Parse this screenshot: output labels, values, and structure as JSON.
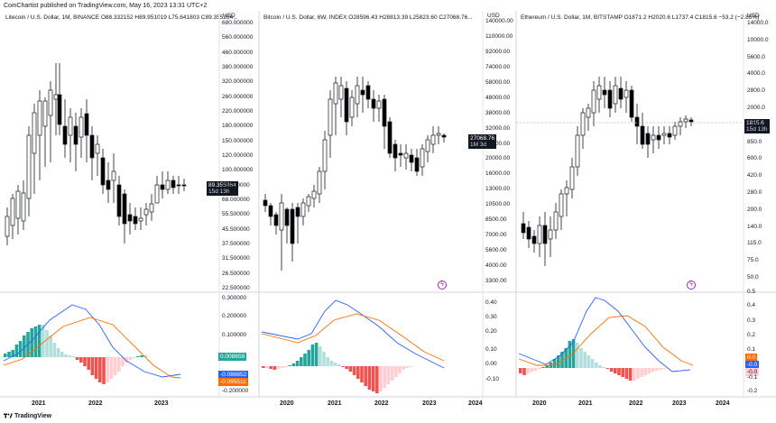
{
  "header": {
    "text": "CoinChartist published on TradingView.com, May 16, 2023 13:31 UTC+2"
  },
  "footer": {
    "brand": "TradingView"
  },
  "currency_label": "USD",
  "panels": [
    {
      "title": "Litecoin / U.S. Dollar, 1M, BINANCE  O88.332152  H89.951019  L75.641803  C89.355264...",
      "price_ticks": [
        "680.000000",
        "560.000000",
        "460.000000",
        "380.000000",
        "320.000000",
        "260.000000",
        "220.000000",
        "180.000000",
        "150.000000",
        "120.000000",
        "100.000000",
        "82.000000",
        "68.000000",
        "55.500000",
        "45.500000",
        "37.500000",
        "31.500000",
        "26.500000",
        "22.500000"
      ],
      "price_badge": "89.355264",
      "price_badge_sub": "15d 13h",
      "macd_ticks": [
        "0.300000",
        "0.200000",
        "0.100000",
        "-0.200000"
      ],
      "macd_badges": [
        "0.008659",
        "-0.086852",
        "-0.095511"
      ],
      "x_ticks": [
        "2021",
        "2022",
        "2023"
      ]
    },
    {
      "title": "Bitcoin / U.S. Dollar, 6W, INDEX  O28596.43  H28813.39  L25823.60  C27068.76...",
      "price_ticks": [
        "140000.00",
        "110000.00",
        "92000.00",
        "74000.00",
        "58000.00",
        "48000.00",
        "38000.00",
        "32000.00",
        "26000.00",
        "20000.00",
        "16000.00",
        "13000.00",
        "10500.00",
        "8500.00",
        "7000.00",
        "5600.00",
        "4000.00",
        "3300.00"
      ],
      "price_badge": "27068.76",
      "price_badge_sub": "1M 3d",
      "macd_ticks": [
        "0.40",
        "0.30",
        "0.20",
        "0.10",
        "0.00",
        "-0.10"
      ],
      "x_ticks": [
        "2020",
        "2021",
        "2022",
        "2023",
        "2024"
      ]
    },
    {
      "title": "Ethereum / U.S. Dollar, 1M, BITSTAMP  O1871.2  H2020.6  L1737.4  C1815.6  −53.2 (−2.85%)",
      "price_ticks": [
        "14000.0",
        "10000.0",
        "5600.0",
        "4000.0",
        "2800.0",
        "2000.0",
        "1200.0",
        "850.0",
        "600.0",
        "420.0",
        "280.0",
        "200.0",
        "140.0",
        "115.0",
        "75.0",
        "50.0"
      ],
      "price_badge": "1815.6",
      "price_badge_sub": "15d 13h",
      "macd_ticks": [
        "0.5",
        "0.4",
        "0.3",
        "0.2",
        "0.1",
        "-0.1",
        "-0.2"
      ],
      "macd_badges": [
        "0.0",
        "-0.0",
        "-0.0"
      ],
      "x_ticks": [
        "2020",
        "2021",
        "2022",
        "2023",
        "2024"
      ]
    }
  ],
  "colors": {
    "up": "#ffffff",
    "down": "#000000",
    "macd_line": "#2962ff",
    "signal_line": "#ff6d00",
    "hist_up_strong": "#26a69a",
    "hist_up_weak": "#b2dfdb",
    "hist_down_strong": "#ef5350",
    "hist_down_weak": "#ffcdd2"
  }
}
